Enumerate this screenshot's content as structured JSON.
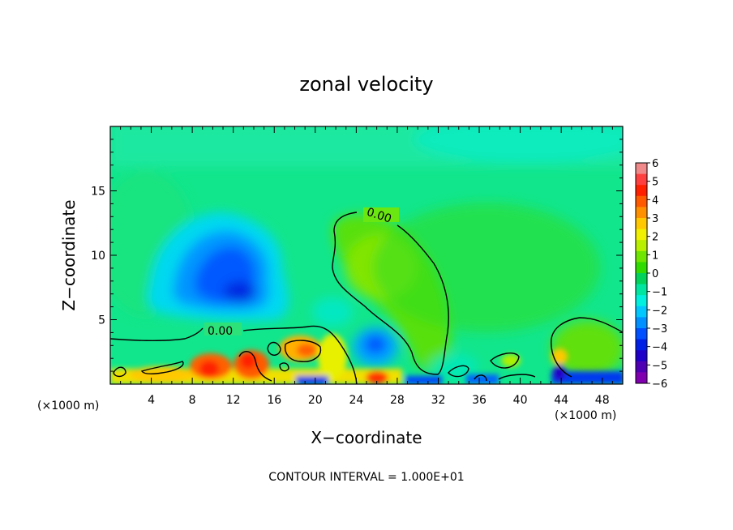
{
  "chart_data": {
    "type": "heatmap",
    "title": "zonal velocity",
    "xlabel": "X−coordinate",
    "ylabel": "Z−coordinate",
    "x_unit_left": "(×1000 m)",
    "x_unit_right": "(×1000 m)",
    "footer": "CONTOUR INTERVAL = 1.000E+01",
    "xlim": [
      0,
      50
    ],
    "ylim": [
      0,
      20
    ],
    "x_ticks": [
      4,
      8,
      12,
      16,
      20,
      24,
      28,
      32,
      36,
      40,
      44,
      48
    ],
    "y_ticks": [
      5,
      10,
      15
    ],
    "contour_label": "0.00",
    "colorbar": {
      "ticks": [
        "6",
        "5",
        "4",
        "3",
        "2",
        "1",
        "0",
        "−1",
        "−2",
        "−3",
        "−4",
        "−5",
        "−6"
      ],
      "colors": [
        "#f08a8a",
        "#ff4040",
        "#ff2000",
        "#ff5a00",
        "#ff9000",
        "#ffc800",
        "#f0f000",
        "#b8f000",
        "#6ee600",
        "#30dc00",
        "#00d25a",
        "#00e6a0",
        "#00f0e0",
        "#00c8ff",
        "#0090ff",
        "#0050ff",
        "#0020e6",
        "#2000c8",
        "#5000b4",
        "#8000b0"
      ]
    },
    "field": {
      "background": "#12e68c",
      "features": [
        {
          "name": "negative core",
          "x": 12,
          "z": 8.5,
          "value": -4.5
        },
        {
          "name": "negative lobe",
          "x": 26,
          "z": 3,
          "value": -3
        },
        {
          "name": "positive region",
          "x": 29,
          "z": 9,
          "value": 0.6
        },
        {
          "name": "positive surface band",
          "x": 11,
          "z": 1,
          "value": 5
        },
        {
          "name": "positive near surface",
          "x": 46,
          "z": 3,
          "value": 0.8
        }
      ]
    }
  }
}
